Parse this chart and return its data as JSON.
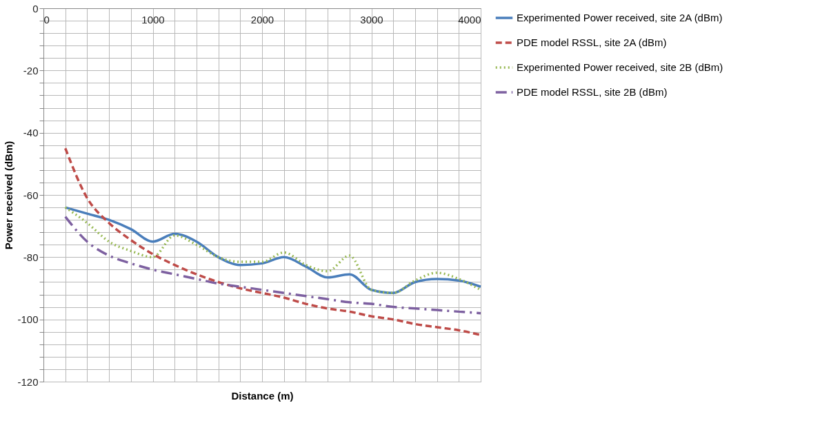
{
  "chart_data": {
    "type": "line",
    "xlabel": "Distance (m)",
    "ylabel": "Power received (dBm)",
    "x": [
      200,
      400,
      600,
      800,
      1000,
      1200,
      1400,
      1600,
      1800,
      2000,
      2200,
      2400,
      2600,
      2800,
      3000,
      3200,
      3400,
      3600,
      3800,
      4000
    ],
    "series": [
      {
        "name": "Experimented  Power received, site 2A   (dBm)",
        "color": "#4a7ebb",
        "line_style": "solid",
        "values": [
          -64,
          -66,
          -68,
          -71,
          -75,
          -72.5,
          -75,
          -80,
          -82.5,
          -82,
          -80,
          -83,
          -86.5,
          -85.5,
          -90.5,
          -91.5,
          -88,
          -87,
          -87.5,
          -89.5
        ]
      },
      {
        "name": "PDE model RSSL, site 2A (dBm)",
        "color": "#be4b48",
        "line_style": "dashed",
        "values": [
          -45,
          -61,
          -69,
          -74.5,
          -79,
          -82.5,
          -85.5,
          -88,
          -90,
          -91.5,
          -93,
          -95,
          -96.5,
          -97.5,
          -99,
          -100,
          -101.5,
          -102.5,
          -103.5,
          -105
        ]
      },
      {
        "name": "Experimented  Power received, site 2B (dBm)",
        "color": "#98b954",
        "line_style": "dotted",
        "values": [
          -64,
          -69,
          -75,
          -78,
          -80,
          -73,
          -76,
          -80,
          -81.5,
          -81.5,
          -78.5,
          -82.5,
          -84.5,
          -79.5,
          -90.5,
          -91.5,
          -87.5,
          -85,
          -87,
          -90.5
        ]
      },
      {
        "name": "PDE model RSSL, site 2B (dBm)",
        "color": "#7d60a0",
        "line_style": "dashdot",
        "values": [
          -67,
          -75,
          -79.5,
          -82,
          -84,
          -85.5,
          -87,
          -88.5,
          -89.5,
          -90.5,
          -91.5,
          -92.5,
          -93.5,
          -94.5,
          -95,
          -96,
          -96.5,
          -97,
          -97.5,
          -98
        ]
      }
    ],
    "xlim": [
      0,
      4000
    ],
    "xticks": [
      0,
      {
        "value": 200,
        "label": null
      },
      {
        "value": 400,
        "label": null
      },
      {
        "value": 600,
        "label": null
      },
      {
        "value": 800,
        "label": null
      },
      1000,
      {
        "value": 1200,
        "label": null
      },
      {
        "value": 1400,
        "label": null
      },
      {
        "value": 1600,
        "label": null
      },
      {
        "value": 1800,
        "label": null
      },
      2000,
      {
        "value": 2200,
        "label": null
      },
      {
        "value": 2400,
        "label": null
      },
      {
        "value": 2600,
        "label": null
      },
      {
        "value": 2800,
        "label": null
      },
      3000,
      {
        "value": 3200,
        "label": null
      },
      {
        "value": 3400,
        "label": null
      },
      {
        "value": 3600,
        "label": null
      },
      {
        "value": 3800,
        "label": null
      },
      4000
    ],
    "ylim": [
      -120,
      0
    ],
    "yticks": [
      -120,
      {
        "value": -116,
        "label": null
      },
      {
        "value": -112,
        "label": null
      },
      {
        "value": -108,
        "label": null
      },
      {
        "value": -104,
        "label": null
      },
      -100,
      {
        "value": -96,
        "label": null
      },
      {
        "value": -92,
        "label": null
      },
      {
        "value": -88,
        "label": null
      },
      {
        "value": -84,
        "label": null
      },
      -80,
      {
        "value": -76,
        "label": null
      },
      {
        "value": -72,
        "label": null
      },
      {
        "value": -68,
        "label": null
      },
      {
        "value": -64,
        "label": null
      },
      -60,
      {
        "value": -56,
        "label": null
      },
      {
        "value": -52,
        "label": null
      },
      {
        "value": -48,
        "label": null
      },
      {
        "value": -44,
        "label": null
      },
      -40,
      {
        "value": -36,
        "label": null
      },
      {
        "value": -32,
        "label": null
      },
      {
        "value": -28,
        "label": null
      },
      {
        "value": -24,
        "label": null
      },
      -20,
      {
        "value": -16,
        "label": null
      },
      {
        "value": -12,
        "label": null
      },
      {
        "value": -8,
        "label": null
      },
      {
        "value": -4,
        "label": null
      },
      0
    ],
    "grid": true,
    "legend": "right",
    "marker": "none"
  }
}
